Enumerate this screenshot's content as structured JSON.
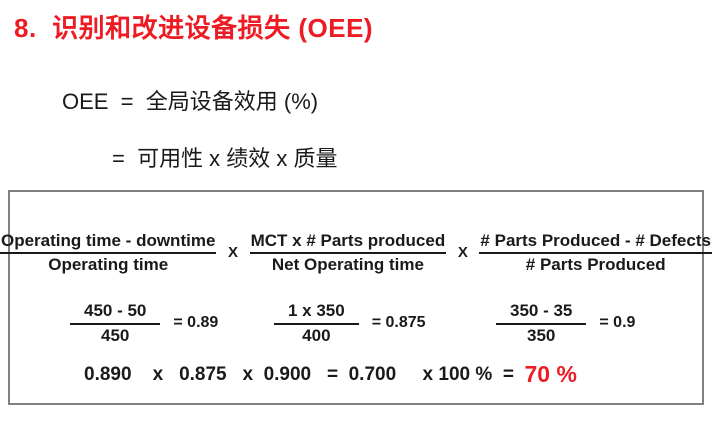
{
  "slide": {
    "title": "8.  识别和改进设备损失 (OEE)",
    "definition": {
      "line1": "OEE  =  全局设备效用 (%)",
      "line2": "=  可用性 x 绩效 x 质量"
    },
    "formula_box": {
      "multiply_sign": "X",
      "factors": [
        {
          "numerator": "Operating time - downtime",
          "denominator": "Operating time"
        },
        {
          "numerator": "MCT x # Parts produced",
          "denominator": "Net Operating time"
        },
        {
          "numerator": "# Parts Produced - # Defects",
          "denominator": "# Parts Produced"
        }
      ],
      "examples": [
        {
          "numerator": "450 - 50",
          "denominator": "450",
          "result": "= 0.89"
        },
        {
          "numerator": "1 x 350",
          "denominator": "400",
          "result": "= 0.875"
        },
        {
          "numerator": "350 - 35",
          "denominator": "350",
          "result": "= 0.9"
        }
      ],
      "final": {
        "expression": "0.890    x   0.875   x  0.900   =  0.700     x 100 %  =  ",
        "result": "70 %"
      }
    },
    "colors": {
      "title_red": "#ed1c24",
      "result_red": "#ed1c24",
      "text_black": "#1a1a1a",
      "box_border": "#808080"
    }
  }
}
